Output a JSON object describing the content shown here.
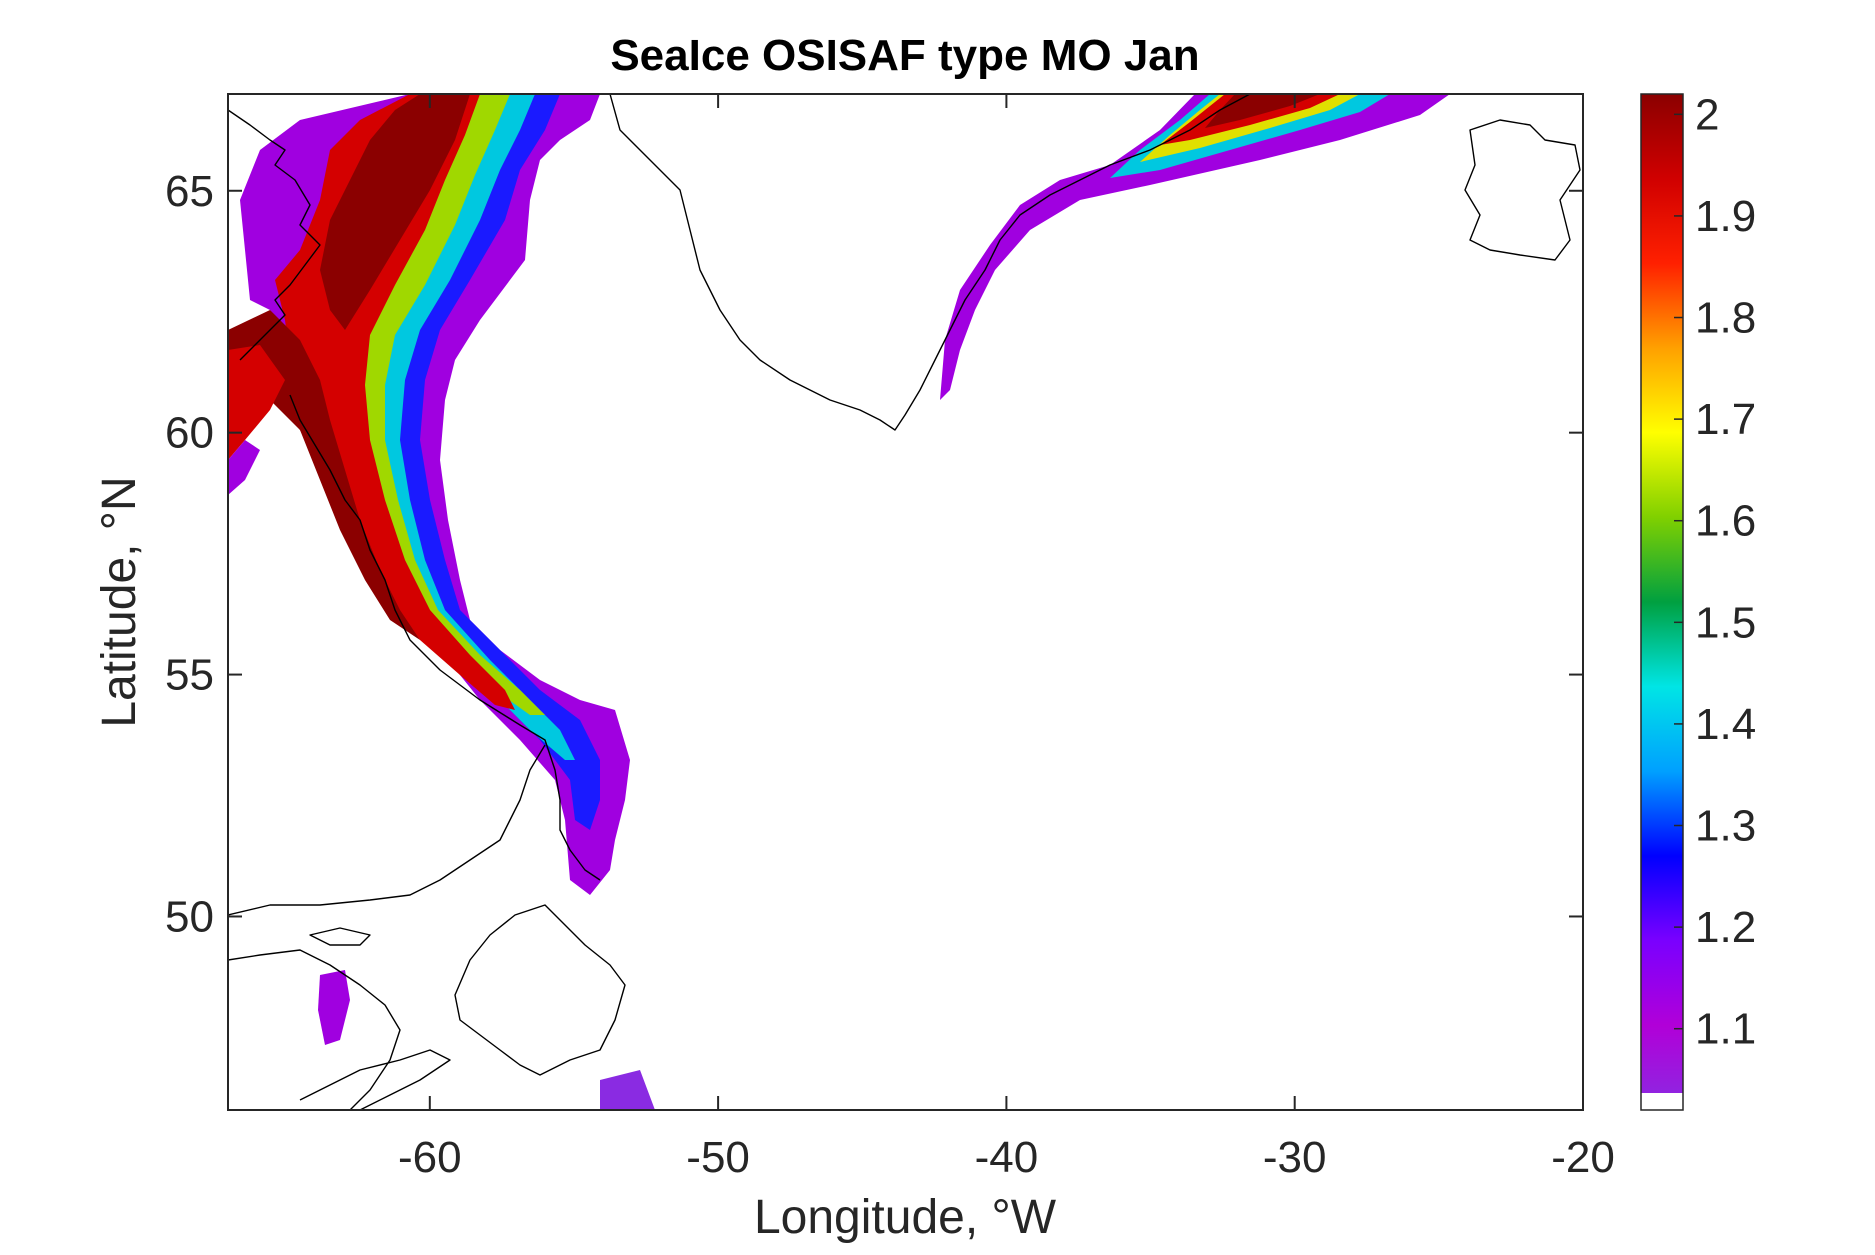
{
  "figure": {
    "title": "SeaIce OSISAF type MO Jan",
    "xlabel": "Longitude, °W",
    "ylabel": "Latitude, °N"
  },
  "chart_data": {
    "type": "heatmap",
    "title": "SeaIce OSISAF type MO Jan",
    "xlabel": "Longitude, °W",
    "ylabel": "Latitude, °N",
    "xlim": [
      -67,
      -20
    ],
    "ylim": [
      46,
      67
    ],
    "xticks": [
      -60,
      -50,
      -40,
      -30,
      -20
    ],
    "xtick_labels": [
      "-60",
      "-50",
      "-40",
      "-30",
      "-20"
    ],
    "yticks": [
      50,
      55,
      60,
      65
    ],
    "ytick_labels": [
      "50",
      "55",
      "60",
      "65"
    ],
    "colorbar": {
      "limits": [
        1.02,
        2.02
      ],
      "ticks": [
        1.1,
        1.2,
        1.3,
        1.4,
        1.5,
        1.6,
        1.7,
        1.8,
        1.9,
        2
      ],
      "tick_labels": [
        "1.1",
        "1.2",
        "1.3",
        "1.4",
        "1.5",
        "1.6",
        "1.7",
        "1.8",
        "1.9",
        "2"
      ],
      "colors": [
        "#8a2be2",
        "#b100d8",
        "#7a00ff",
        "#0000ff",
        "#00a0ff",
        "#00e5e5",
        "#00a040",
        "#80d000",
        "#ffff00",
        "#ffa000",
        "#ff2000",
        "#d00000",
        "#8b0000"
      ]
    },
    "coastline_color": "#000000"
  }
}
